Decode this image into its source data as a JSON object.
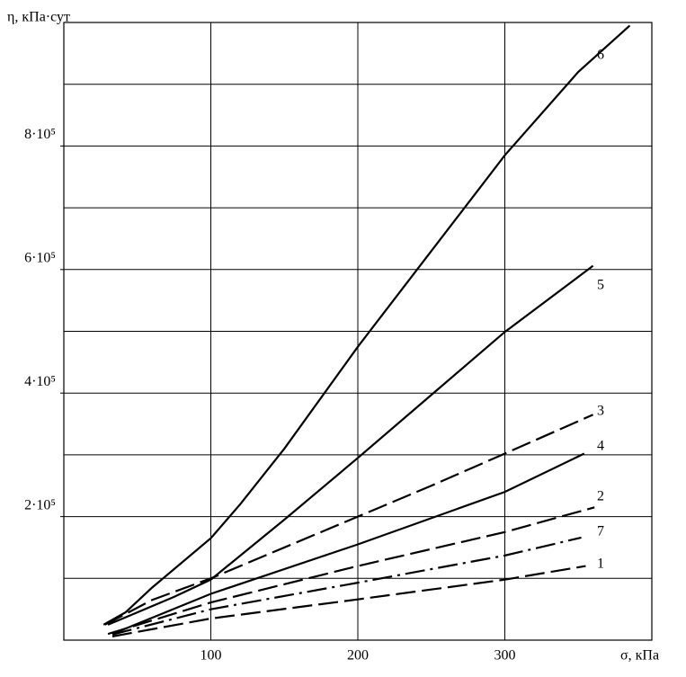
{
  "chart_data": {
    "type": "line",
    "y_label": "η, кПа·сут",
    "x_label": "σ, кПа",
    "xlim": [
      0,
      400
    ],
    "xticks": [
      100,
      200,
      300
    ],
    "ylim": [
      0,
      1000000
    ],
    "yticks": [
      {
        "value": 200000,
        "label": "2·10⁵"
      },
      {
        "value": 400000,
        "label": "4·10⁵"
      },
      {
        "value": 600000,
        "label": "6·10⁵"
      },
      {
        "value": 800000,
        "label": "8·10⁵"
      }
    ],
    "ygrid": [
      100000,
      200000,
      300000,
      400000,
      500000,
      600000,
      700000,
      800000,
      900000
    ],
    "grid": true,
    "series": [
      {
        "name": "1",
        "color": "#000000",
        "style": "dashed",
        "x": [
          33,
          100,
          200,
          300,
          355
        ],
        "values": [
          6000,
          35000,
          66000,
          98000,
          120000
        ]
      },
      {
        "name": "2",
        "color": "#000000",
        "style": "dashed",
        "x": [
          30,
          100,
          200,
          300,
          361
        ],
        "values": [
          10000,
          61000,
          120000,
          175000,
          215000
        ]
      },
      {
        "name": "3",
        "color": "#000000",
        "style": "dashed",
        "x": [
          28,
          60,
          100,
          150,
          200,
          250,
          300,
          360
        ],
        "values": [
          25000,
          65000,
          100000,
          150000,
          200000,
          250000,
          302000,
          365000
        ]
      },
      {
        "name": "4",
        "color": "#000000",
        "style": "solid",
        "x": [
          33,
          100,
          200,
          300,
          354
        ],
        "values": [
          10000,
          75000,
          155000,
          240000,
          302000
        ]
      },
      {
        "name": "5",
        "color": "#000000",
        "style": "solid",
        "x": [
          30,
          50,
          75,
          100,
          150,
          200,
          250,
          300,
          360
        ],
        "values": [
          25000,
          45000,
          70000,
          98000,
          195000,
          295000,
          397000,
          499000,
          606000
        ]
      },
      {
        "name": "6",
        "color": "#000000",
        "style": "solid",
        "x": [
          27,
          42,
          60,
          80,
          100,
          120,
          150,
          200,
          250,
          300,
          350,
          385
        ],
        "values": [
          25000,
          45000,
          85000,
          125000,
          165000,
          220000,
          310000,
          475000,
          630000,
          785000,
          920000,
          995000
        ]
      },
      {
        "name": "7",
        "color": "#000000",
        "style": "dashdot",
        "x": [
          33,
          100,
          200,
          300,
          352
        ],
        "values": [
          9000,
          50000,
          93000,
          137000,
          166000
        ]
      }
    ]
  }
}
